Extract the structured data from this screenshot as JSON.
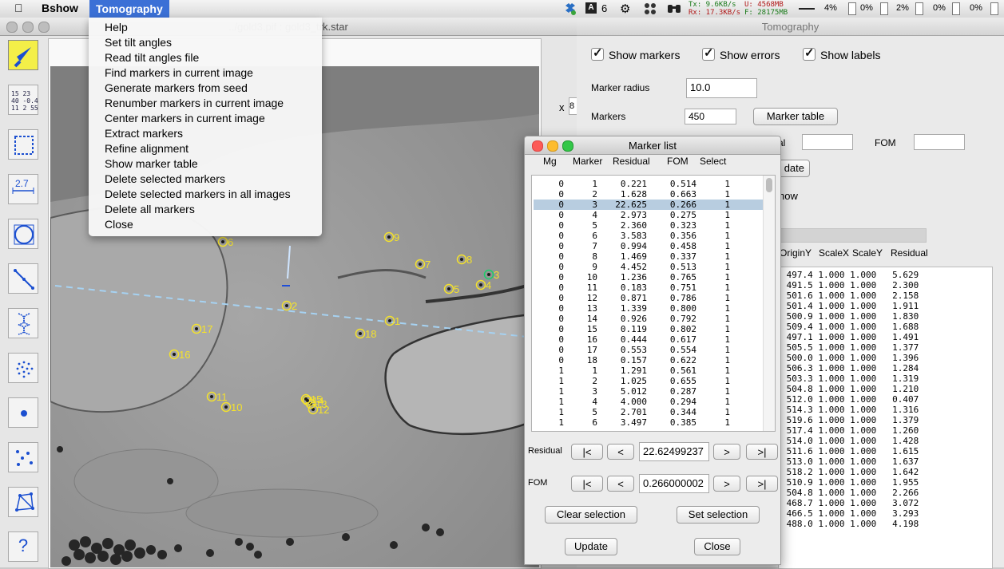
{
  "menubar": {
    "apple": "",
    "app": "Bshow",
    "menu": "Tomography",
    "status_count": "6",
    "net_tx": "Tx: 9.6KB/s",
    "net_rx": "Rx: 17.3KB/s",
    "mem_u": "U: 4568MB",
    "mem_f": "F: 28175MB",
    "cpu": [
      "4%",
      "0%",
      "2%",
      "0%",
      "0%"
    ]
  },
  "image_window": {
    "title": "../gold3.pif : gold3_trk.star",
    "x_label": "x",
    "x_value": "8",
    "tool_number_text": "15 23\n40 -0.4\n11 2 55",
    "tool_measure_text": "2.7",
    "help_tool": "?"
  },
  "dropdown": [
    "Help",
    "Set tilt angles",
    "Read tilt angles file",
    "Find markers in current image",
    "Generate markers from seed",
    "Renumber markers in current image",
    "Center markers in current image",
    "Extract markers",
    "Refine alignment",
    "Show marker table",
    "Delete selected markers",
    "Delete selected markers in all images",
    "Delete all markers",
    "Close"
  ],
  "markers_overlay": [
    {
      "label": "1"
    },
    {
      "label": "2"
    },
    {
      "label": "3"
    },
    {
      "label": "4"
    },
    {
      "label": "5"
    },
    {
      "label": "6"
    },
    {
      "label": "7"
    },
    {
      "label": "8"
    },
    {
      "label": "9"
    },
    {
      "label": "10"
    },
    {
      "label": "11"
    },
    {
      "label": "12"
    },
    {
      "label": "13"
    },
    {
      "label": "14"
    },
    {
      "label": "15"
    },
    {
      "label": "16"
    },
    {
      "label": "17"
    },
    {
      "label": "18"
    }
  ],
  "tomography": {
    "title": "Tomography",
    "show_markers": "Show markers",
    "show_errors": "Show errors",
    "show_labels": "Show labels",
    "marker_radius_label": "Marker radius",
    "marker_radius": "10.0",
    "markers_label": "Markers",
    "markers_value": "450",
    "marker_table_button": "Marker table",
    "partial_al": "al",
    "fom_label": "FOM",
    "update_partial": "date",
    "show_partial": "how",
    "col_headers": [
      "OriginY",
      "ScaleX",
      "ScaleY",
      "Residual"
    ],
    "rows": [
      [
        "497.4",
        "1.000",
        "1.000",
        "5.629"
      ],
      [
        "491.5",
        "1.000",
        "1.000",
        "2.300"
      ],
      [
        "501.6",
        "1.000",
        "1.000",
        "2.158"
      ],
      [
        "501.4",
        "1.000",
        "1.000",
        "1.911"
      ],
      [
        "500.9",
        "1.000",
        "1.000",
        "1.830"
      ],
      [
        "509.4",
        "1.000",
        "1.000",
        "1.688"
      ],
      [
        "497.1",
        "1.000",
        "1.000",
        "1.491"
      ],
      [
        "505.5",
        "1.000",
        "1.000",
        "1.377"
      ],
      [
        "500.0",
        "1.000",
        "1.000",
        "1.396"
      ],
      [
        "506.3",
        "1.000",
        "1.000",
        "1.284"
      ],
      [
        "503.3",
        "1.000",
        "1.000",
        "1.319"
      ],
      [
        "504.8",
        "1.000",
        "1.000",
        "1.210"
      ],
      [
        "512.0",
        "1.000",
        "1.000",
        "0.407"
      ],
      [
        "514.3",
        "1.000",
        "1.000",
        "1.316"
      ],
      [
        "519.6",
        "1.000",
        "1.000",
        "1.379"
      ],
      [
        "517.4",
        "1.000",
        "1.000",
        "1.260"
      ],
      [
        "514.0",
        "1.000",
        "1.000",
        "1.428"
      ],
      [
        "511.6",
        "1.000",
        "1.000",
        "1.615"
      ],
      [
        "513.0",
        "1.000",
        "1.000",
        "1.637"
      ],
      [
        "518.2",
        "1.000",
        "1.000",
        "1.642"
      ],
      [
        "510.9",
        "1.000",
        "1.000",
        "1.955"
      ],
      [
        "504.8",
        "1.000",
        "1.000",
        "2.266"
      ],
      [
        "468.7",
        "1.000",
        "1.000",
        "3.072"
      ],
      [
        "466.5",
        "1.000",
        "1.000",
        "3.293"
      ],
      [
        "488.0",
        "1.000",
        "1.000",
        "4.198"
      ]
    ]
  },
  "marker_list": {
    "title": "Marker list",
    "headers": [
      "Mg",
      "Marker",
      "Residual",
      "FOM",
      "Select"
    ],
    "rows": [
      [
        "0",
        "1",
        "0.221",
        "0.514",
        "1"
      ],
      [
        "0",
        "2",
        "1.628",
        "0.663",
        "1"
      ],
      [
        "0",
        "3",
        "22.625",
        "0.266",
        "1"
      ],
      [
        "0",
        "4",
        "2.973",
        "0.275",
        "1"
      ],
      [
        "0",
        "5",
        "2.360",
        "0.323",
        "1"
      ],
      [
        "0",
        "6",
        "3.583",
        "0.356",
        "1"
      ],
      [
        "0",
        "7",
        "0.994",
        "0.458",
        "1"
      ],
      [
        "0",
        "8",
        "1.469",
        "0.337",
        "1"
      ],
      [
        "0",
        "9",
        "4.452",
        "0.513",
        "1"
      ],
      [
        "0",
        "10",
        "1.236",
        "0.765",
        "1"
      ],
      [
        "0",
        "11",
        "0.183",
        "0.751",
        "1"
      ],
      [
        "0",
        "12",
        "0.871",
        "0.786",
        "1"
      ],
      [
        "0",
        "13",
        "1.339",
        "0.800",
        "1"
      ],
      [
        "0",
        "14",
        "0.926",
        "0.792",
        "1"
      ],
      [
        "0",
        "15",
        "0.119",
        "0.802",
        "1"
      ],
      [
        "0",
        "16",
        "0.444",
        "0.617",
        "1"
      ],
      [
        "0",
        "17",
        "0.553",
        "0.554",
        "1"
      ],
      [
        "0",
        "18",
        "0.157",
        "0.622",
        "1"
      ],
      [
        "1",
        "1",
        "1.291",
        "0.561",
        "1"
      ],
      [
        "1",
        "2",
        "1.025",
        "0.655",
        "1"
      ],
      [
        "1",
        "3",
        "5.012",
        "0.287",
        "1"
      ],
      [
        "1",
        "4",
        "4.000",
        "0.294",
        "1"
      ],
      [
        "1",
        "5",
        "2.701",
        "0.344",
        "1"
      ],
      [
        "1",
        "6",
        "3.497",
        "0.385",
        "1"
      ]
    ],
    "selected_row": 2,
    "residual_label": "Residual",
    "residual_value": "22.62499237",
    "fom_label": "FOM",
    "fom_value": "0.266000002",
    "nav": [
      "|<",
      "<",
      ">",
      ">|"
    ],
    "clear_selection": "Clear selection",
    "set_selection": "Set selection",
    "update": "Update",
    "close": "Close"
  }
}
